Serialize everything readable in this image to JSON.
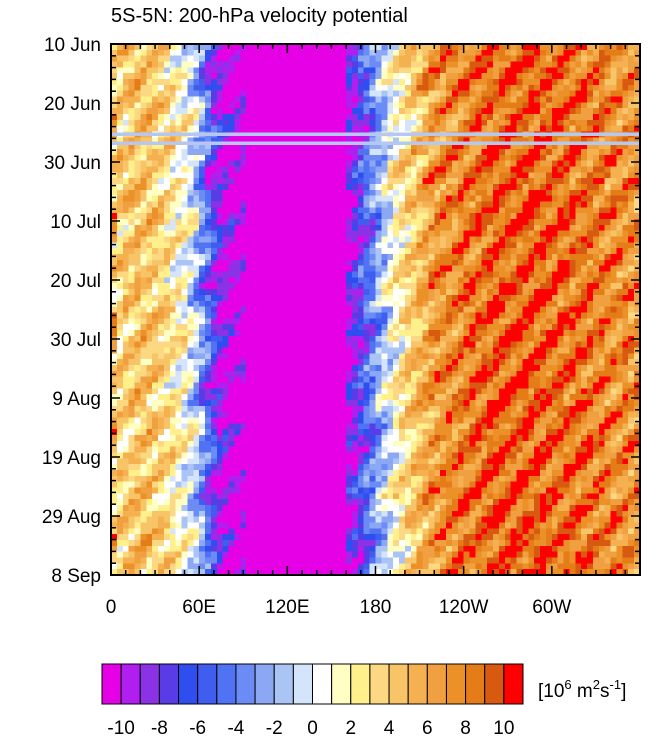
{
  "chart_data": {
    "type": "heatmap",
    "title": "5S-5N: 200-hPa velocity potential",
    "xlabel": "",
    "ylabel": "",
    "x_ticks": [
      {
        "lon": 0,
        "label": "0"
      },
      {
        "lon": 60,
        "label": "60E"
      },
      {
        "lon": 120,
        "label": "120E"
      },
      {
        "lon": 180,
        "label": "180"
      },
      {
        "lon": 240,
        "label": "120W"
      },
      {
        "lon": 300,
        "label": "60W"
      }
    ],
    "xlim": [
      0,
      360
    ],
    "y_ticks": [
      {
        "day": 0,
        "label": "10 Jun"
      },
      {
        "day": 10,
        "label": "20 Jun"
      },
      {
        "day": 20,
        "label": "30 Jun"
      },
      {
        "day": 30,
        "label": "10 Jul"
      },
      {
        "day": 40,
        "label": "20 Jul"
      },
      {
        "day": 50,
        "label": "30 Jul"
      },
      {
        "day": 60,
        "label": "9 Aug"
      },
      {
        "day": 70,
        "label": "19 Aug"
      },
      {
        "day": 80,
        "label": "29 Aug"
      },
      {
        "day": 90,
        "label": "8 Sep"
      }
    ],
    "ylim": [
      0,
      90
    ],
    "missing_days": [
      15,
      16.5
    ],
    "missing_color": "#b7c8f0",
    "colorbar": {
      "labels": [
        "-10",
        "-8",
        "-6",
        "-4",
        "-2",
        "0",
        "2",
        "4",
        "6",
        "8",
        "10"
      ],
      "units": "[10",
      "units_exp1": "6",
      "units_mid": " m",
      "units_exp2": "2",
      "units_s": "s",
      "units_exp3": "-1",
      "units_end": "]",
      "levels": [
        -11,
        -10,
        -9,
        -8,
        -7,
        -6,
        -5,
        -4,
        -3,
        -2,
        -1,
        0,
        1,
        2,
        3,
        4,
        5,
        6,
        7,
        8,
        9,
        10
      ],
      "colors": [
        "#e600e6",
        "#b01ef0",
        "#8c32e6",
        "#5a3ce6",
        "#2f4ef0",
        "#3f5ef0",
        "#4f73f3",
        "#6b8cf5",
        "#8ca8f5",
        "#aac4f5",
        "#d4e4fa",
        "#ffffff",
        "#ffffc4",
        "#fff08c",
        "#fdd882",
        "#f8c468",
        "#f5b050",
        "#f0a040",
        "#ec9028",
        "#e47c18",
        "#d85a10",
        "#ff0000"
      ]
    },
    "climatology_profile": [
      {
        "lon": 0,
        "value": 3
      },
      {
        "lon": 20,
        "value": 5
      },
      {
        "lon": 40,
        "value": 3
      },
      {
        "lon": 55,
        "value": 0
      },
      {
        "lon": 62,
        "value": -3
      },
      {
        "lon": 70,
        "value": -8
      },
      {
        "lon": 85,
        "value": -11
      },
      {
        "lon": 120,
        "value": -11
      },
      {
        "lon": 150,
        "value": -11
      },
      {
        "lon": 168,
        "value": -8
      },
      {
        "lon": 178,
        "value": -4
      },
      {
        "lon": 188,
        "value": 0
      },
      {
        "lon": 200,
        "value": 3
      },
      {
        "lon": 220,
        "value": 7
      },
      {
        "lon": 260,
        "value": 9
      },
      {
        "lon": 300,
        "value": 9
      },
      {
        "lon": 330,
        "value": 8
      },
      {
        "lon": 360,
        "value": 7
      }
    ]
  }
}
